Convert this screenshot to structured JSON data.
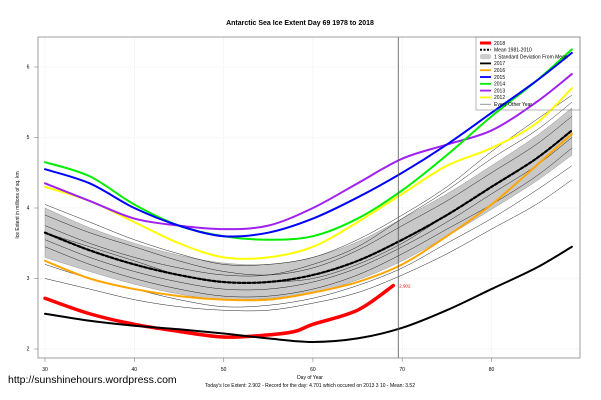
{
  "watermark": "http://sunshinehours.wordpress.com",
  "chart_data": {
    "type": "line",
    "title": "Antarctic Sea Ice Extent Day 69 1978 to 2018",
    "xlabel": "Day of Year",
    "ylabel": "Ice Extent in millions of sq. km",
    "xlim": [
      29,
      90
    ],
    "ylim": [
      1.9,
      6.45
    ],
    "xticks": [
      30,
      40,
      50,
      60,
      70,
      80
    ],
    "yticks": [
      2,
      3,
      4,
      5,
      6
    ],
    "grid": true,
    "legend_placement": "top-right",
    "current_day": 69,
    "current_value_label": "2.902",
    "footer": "Today's Ice Extent: 2.902  - Record for the day: 4.701 which occured on 2013 3 10  - Mean: 3.52",
    "legend": [
      "2018",
      "Mean 1981-2010",
      "1 Standard Deviation From Mean",
      "2017",
      "2016",
      "2015",
      "2014",
      "2013",
      "2012",
      "Every Other Year"
    ],
    "x": [
      30,
      35,
      40,
      45,
      50,
      55,
      60,
      65,
      70,
      75,
      80,
      85,
      89
    ],
    "std_band": {
      "name": "1 Standard Deviation From Mean",
      "color": "#c8c8c8",
      "lower": [
        3.3,
        3.1,
        2.92,
        2.78,
        2.7,
        2.72,
        2.8,
        2.98,
        3.25,
        3.6,
        3.98,
        4.38,
        4.75
      ],
      "upper": [
        4.0,
        3.72,
        3.5,
        3.33,
        3.22,
        3.2,
        3.3,
        3.52,
        3.85,
        4.2,
        4.6,
        5.02,
        5.42
      ]
    },
    "other_years": [
      [
        3.9,
        3.65,
        3.45,
        3.25,
        3.1,
        3.05,
        3.15,
        3.4,
        3.75,
        4.1,
        4.5,
        4.9,
        5.3
      ],
      [
        3.55,
        3.3,
        3.1,
        2.95,
        2.85,
        2.85,
        2.95,
        3.15,
        3.45,
        3.8,
        4.2,
        4.6,
        5.0
      ],
      [
        3.2,
        3.0,
        2.85,
        2.7,
        2.6,
        2.62,
        2.72,
        2.9,
        3.15,
        3.5,
        3.85,
        4.25,
        4.6
      ],
      [
        3.75,
        3.5,
        3.3,
        3.15,
        3.05,
        3.05,
        3.2,
        3.45,
        3.85,
        4.25,
        4.7,
        5.1,
        5.5
      ],
      [
        3.45,
        3.2,
        3.0,
        2.85,
        2.75,
        2.75,
        2.85,
        3.05,
        3.35,
        3.7,
        4.05,
        4.45,
        4.85
      ],
      [
        4.05,
        3.8,
        3.55,
        3.35,
        3.2,
        3.2,
        3.3,
        3.55,
        3.9,
        4.3,
        4.8,
        5.25,
        5.6
      ],
      [
        3.0,
        2.85,
        2.7,
        2.6,
        2.55,
        2.55,
        2.65,
        2.8,
        3.05,
        3.35,
        3.7,
        4.05,
        4.4
      ],
      [
        3.65,
        3.45,
        3.25,
        3.05,
        2.95,
        2.95,
        3.0,
        3.2,
        3.5,
        3.9,
        4.3,
        4.7,
        5.1
      ]
    ],
    "series": [
      {
        "name": "Mean 1981-2010",
        "color": "#000000",
        "dashed": true,
        "values": [
          3.65,
          3.4,
          3.2,
          3.05,
          2.95,
          2.95,
          3.05,
          3.25,
          3.55,
          3.9,
          4.3,
          4.7,
          5.1
        ]
      },
      {
        "name": "2017",
        "color": "#000000",
        "values": [
          2.5,
          2.4,
          2.33,
          2.28,
          2.22,
          2.15,
          2.1,
          2.15,
          2.3,
          2.55,
          2.85,
          3.15,
          3.45
        ]
      },
      {
        "name": "2016",
        "color": "#ffa500",
        "values": [
          3.25,
          3.0,
          2.85,
          2.75,
          2.7,
          2.7,
          2.8,
          2.95,
          3.2,
          3.6,
          4.05,
          4.6,
          5.05
        ]
      },
      {
        "name": "2015",
        "color": "#0000ff",
        "values": [
          4.55,
          4.35,
          4.0,
          3.75,
          3.6,
          3.65,
          3.85,
          4.15,
          4.5,
          4.9,
          5.35,
          5.8,
          6.2
        ]
      },
      {
        "name": "2014",
        "color": "#00ee00",
        "values": [
          4.65,
          4.45,
          4.05,
          3.75,
          3.6,
          3.55,
          3.6,
          3.85,
          4.25,
          4.75,
          5.3,
          5.8,
          6.25
        ]
      },
      {
        "name": "2013",
        "color": "#a020f0",
        "values": [
          4.35,
          4.1,
          3.85,
          3.75,
          3.7,
          3.75,
          4.0,
          4.35,
          4.7,
          4.9,
          5.1,
          5.5,
          5.9
        ]
      },
      {
        "name": "2012",
        "color": "#ffff00",
        "values": [
          4.3,
          4.1,
          3.8,
          3.5,
          3.3,
          3.3,
          3.45,
          3.8,
          4.2,
          4.6,
          4.85,
          5.2,
          5.7
        ]
      },
      {
        "name": "2018",
        "color": "#ff0000",
        "x": [
          30,
          35,
          40,
          45,
          50,
          55,
          58,
          60,
          65,
          69
        ],
        "values": [
          2.72,
          2.5,
          2.35,
          2.25,
          2.17,
          2.2,
          2.25,
          2.35,
          2.55,
          2.9
        ]
      }
    ]
  }
}
